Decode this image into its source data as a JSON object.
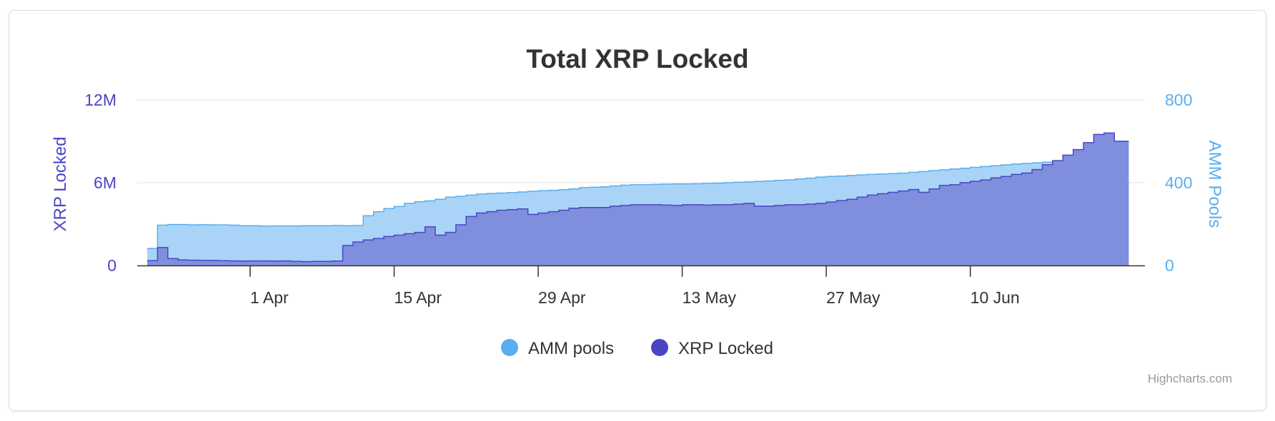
{
  "chart_data": {
    "type": "area",
    "title": "Total XRP Locked",
    "step": true,
    "x_dates": [
      "2023-03-22",
      "2023-03-23",
      "2023-03-24",
      "2023-03-25",
      "2023-03-26",
      "2023-03-27",
      "2023-03-28",
      "2023-03-29",
      "2023-03-30",
      "2023-03-31",
      "2023-04-01",
      "2023-04-02",
      "2023-04-03",
      "2023-04-04",
      "2023-04-05",
      "2023-04-06",
      "2023-04-07",
      "2023-04-08",
      "2023-04-09",
      "2023-04-10",
      "2023-04-11",
      "2023-04-12",
      "2023-04-13",
      "2023-04-14",
      "2023-04-15",
      "2023-04-16",
      "2023-04-17",
      "2023-04-18",
      "2023-04-19",
      "2023-04-20",
      "2023-04-21",
      "2023-04-22",
      "2023-04-23",
      "2023-04-24",
      "2023-04-25",
      "2023-04-26",
      "2023-04-27",
      "2023-04-28",
      "2023-04-29",
      "2023-04-30",
      "2023-05-01",
      "2023-05-02",
      "2023-05-03",
      "2023-05-04",
      "2023-05-05",
      "2023-05-06",
      "2023-05-07",
      "2023-05-08",
      "2023-05-09",
      "2023-05-10",
      "2023-05-11",
      "2023-05-12",
      "2023-05-13",
      "2023-05-14",
      "2023-05-15",
      "2023-05-16",
      "2023-05-17",
      "2023-05-18",
      "2023-05-19",
      "2023-05-20",
      "2023-05-21",
      "2023-05-22",
      "2023-05-23",
      "2023-05-24",
      "2023-05-25",
      "2023-05-26",
      "2023-05-27",
      "2023-05-28",
      "2023-05-29",
      "2023-05-30",
      "2023-05-31",
      "2023-06-01",
      "2023-06-02",
      "2023-06-03",
      "2023-06-04",
      "2023-06-05",
      "2023-06-06",
      "2023-06-07",
      "2023-06-08",
      "2023-06-09",
      "2023-06-10",
      "2023-06-11",
      "2023-06-12",
      "2023-06-13",
      "2023-06-14",
      "2023-06-15",
      "2023-06-16",
      "2023-06-17",
      "2023-06-18",
      "2023-06-19",
      "2023-06-20",
      "2023-06-21",
      "2023-06-22",
      "2023-06-23",
      "2023-06-24",
      "2023-06-25"
    ],
    "series": [
      {
        "name": "AMM pools",
        "color": "#5aaeee",
        "fill": "#a9d4f8",
        "axis": "right",
        "values": [
          82,
          195,
          198,
          198,
          196,
          197,
          196,
          196,
          195,
          192,
          192,
          190,
          191,
          191,
          191,
          192,
          192,
          192,
          193,
          192,
          193,
          240,
          260,
          275,
          285,
          300,
          308,
          312,
          320,
          330,
          334,
          340,
          345,
          348,
          350,
          352,
          355,
          358,
          361,
          363,
          366,
          370,
          376,
          378,
          380,
          384,
          388,
          390,
          390,
          392,
          393,
          394,
          394,
          395,
          396,
          398,
          400,
          402,
          404,
          406,
          408,
          411,
          414,
          418,
          422,
          427,
          430,
          432,
          435,
          438,
          440,
          442,
          444,
          446,
          450,
          454,
          458,
          462,
          466,
          470,
          474,
          478,
          482,
          486,
          490,
          493,
          496,
          499,
          502,
          506,
          510,
          512,
          514,
          516,
          600,
          590
        ]
      },
      {
        "name": "XRP Locked",
        "color": "#4b45c4",
        "fill": "#7f8fdd",
        "axis": "left",
        "values": [
          350000,
          1300000,
          500000,
          400000,
          380000,
          370000,
          360000,
          340000,
          330000,
          320000,
          330000,
          330000,
          320000,
          330000,
          300000,
          280000,
          300000,
          300000,
          320000,
          1450000,
          1700000,
          1850000,
          1950000,
          2100000,
          2200000,
          2300000,
          2400000,
          2800000,
          2200000,
          2400000,
          2950000,
          3550000,
          3800000,
          3900000,
          4000000,
          4050000,
          4100000,
          3700000,
          3800000,
          3900000,
          4000000,
          4150000,
          4200000,
          4200000,
          4200000,
          4300000,
          4350000,
          4400000,
          4400000,
          4400000,
          4380000,
          4350000,
          4400000,
          4400000,
          4380000,
          4400000,
          4400000,
          4450000,
          4500000,
          4300000,
          4300000,
          4350000,
          4400000,
          4400000,
          4450000,
          4500000,
          4600000,
          4700000,
          4800000,
          4950000,
          5100000,
          5200000,
          5300000,
          5400000,
          5500000,
          5300000,
          5550000,
          5800000,
          5850000,
          6000000,
          6100000,
          6200000,
          6350000,
          6450000,
          6600000,
          6700000,
          6950000,
          7300000,
          7600000,
          8000000,
          8400000,
          8900000,
          9500000,
          9600000,
          9000000,
          9000000
        ]
      }
    ],
    "y_left": {
      "title": "XRP Locked",
      "min": 0,
      "max": 12000000,
      "ticks": [
        "0",
        "6M",
        "12M"
      ]
    },
    "y_right": {
      "title": "AMM Pools",
      "min": 0,
      "max": 800,
      "ticks": [
        "0",
        "400",
        "800"
      ]
    },
    "x_ticks": [
      {
        "date": "2023-04-01",
        "label": "1 Apr"
      },
      {
        "date": "2023-04-15",
        "label": "15 Apr"
      },
      {
        "date": "2023-04-29",
        "label": "29 Apr"
      },
      {
        "date": "2023-05-13",
        "label": "13 May"
      },
      {
        "date": "2023-05-27",
        "label": "27 May"
      },
      {
        "date": "2023-06-10",
        "label": "10 Jun"
      }
    ],
    "grid": true,
    "legend": {
      "placement": "bottom-center",
      "items": [
        "AMM pools",
        "XRP Locked"
      ]
    }
  },
  "credits": "Highcharts.com"
}
